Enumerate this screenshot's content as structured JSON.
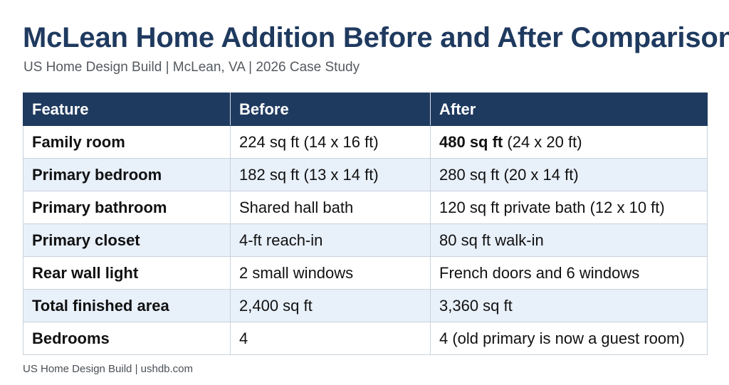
{
  "title": "McLean Home Addition Before and After Comparison",
  "subtitle": "US Home Design Build | McLean, VA | 2026 Case Study",
  "table": {
    "headers": [
      "Feature",
      "Before",
      "After"
    ],
    "rows": [
      {
        "feature": "Family room",
        "before": "224 sq ft (14 x 16 ft)",
        "after_bold": "480 sq ft",
        "after": " (24 x 20 ft)"
      },
      {
        "feature": "Primary bedroom",
        "before": "182 sq ft (13 x 14 ft)",
        "after_bold": "",
        "after": "280 sq ft (20 x 14 ft)"
      },
      {
        "feature": "Primary bathroom",
        "before": "Shared hall bath",
        "after_bold": "",
        "after": "120 sq ft private bath (12 x 10 ft)"
      },
      {
        "feature": "Primary closet",
        "before": "4-ft reach-in",
        "after_bold": "",
        "after": "80 sq ft walk-in"
      },
      {
        "feature": "Rear wall light",
        "before": "2 small windows",
        "after_bold": "",
        "after": "French doors and 6 windows"
      },
      {
        "feature": "Total finished area",
        "before": "2,400 sq ft",
        "after_bold": "",
        "after": "3,360 sq ft"
      },
      {
        "feature": "Bedrooms",
        "before": "4",
        "after_bold": "",
        "after": "4 (old primary is now a guest room)"
      }
    ]
  },
  "footer": "US Home Design Build | ushdb.com",
  "colors": {
    "header_bg": "#1f3a5f",
    "title": "#1f3a5f",
    "stripe": "#e8f0fa"
  }
}
